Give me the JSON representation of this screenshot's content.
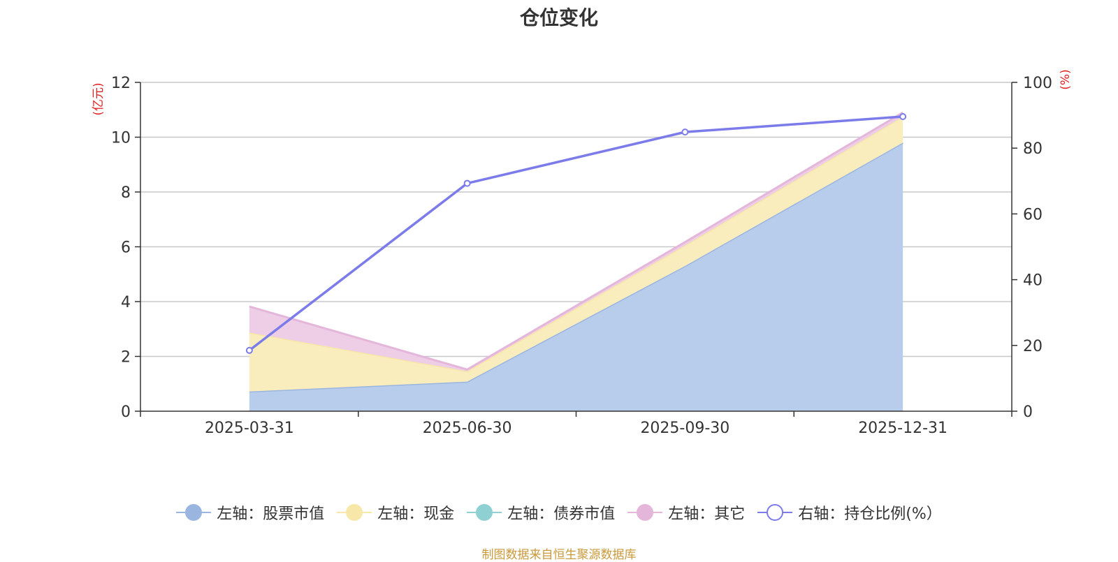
{
  "chart_data": {
    "type": "area",
    "title": "仓位变化",
    "categories": [
      "2025-03-31",
      "2025-06-30",
      "2025-09-30",
      "2025-12-31"
    ],
    "left_axis": {
      "unit_label": "(亿元)",
      "ylim": [
        0,
        12
      ],
      "ticks": [
        0,
        2,
        4,
        6,
        8,
        10,
        12
      ]
    },
    "right_axis": {
      "unit_label": "(%)",
      "ylim": [
        0,
        100
      ],
      "ticks": [
        0,
        20,
        40,
        60,
        80,
        100
      ]
    },
    "series": [
      {
        "name": "左轴：股票市值",
        "axis": "left",
        "stack": true,
        "values": [
          0.72,
          1.08,
          5.3,
          9.8
        ],
        "color": "#9ab6e0",
        "fill": "#b8cdeb"
      },
      {
        "name": "左轴：现金",
        "axis": "left",
        "stack": true,
        "values": [
          2.15,
          0.38,
          0.75,
          0.95
        ],
        "color": "#f7e7a8",
        "fill": "#f9ecbd"
      },
      {
        "name": "左轴：债券市值",
        "axis": "left",
        "stack": true,
        "values": [
          0,
          0,
          0,
          0
        ],
        "color": "#8fd0d3",
        "fill": "#a9dcde"
      },
      {
        "name": "左轴：其它",
        "axis": "left",
        "stack": true,
        "values": [
          0.95,
          0.06,
          0.12,
          0.15
        ],
        "color": "#e4b6da",
        "fill": "#eecde6"
      },
      {
        "name": "右轴：持仓比例(%）",
        "axis": "right",
        "stack": false,
        "type": "line",
        "values": [
          18.5,
          69.3,
          84.9,
          89.6
        ],
        "color": "#7b7bea"
      }
    ],
    "legend_position": "bottom-center",
    "grid": true
  },
  "source_note": "制图数据来自恒生聚源数据库"
}
